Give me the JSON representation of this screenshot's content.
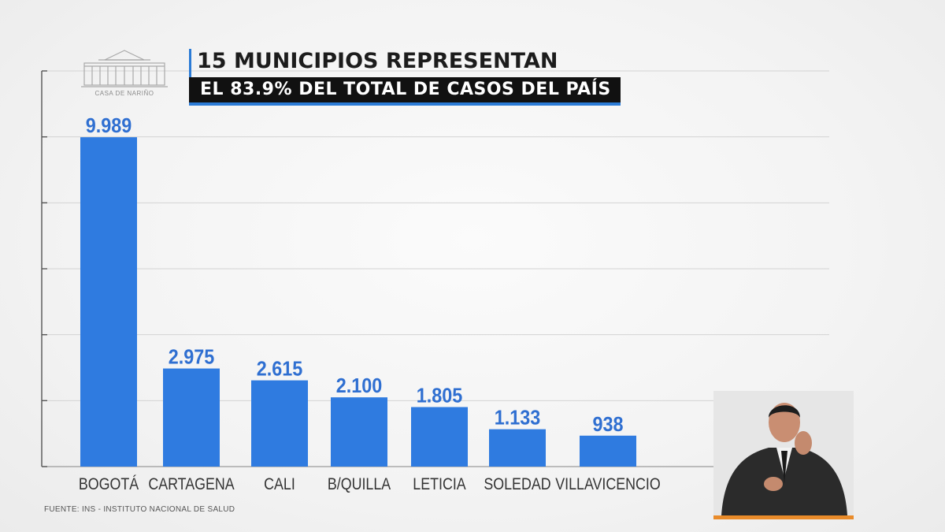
{
  "header": {
    "title_line1": "15 MUNICIPIOS REPRESENTAN",
    "title_line2": "EL 83.9% DEL TOTAL DE CASOS DEL PAÍS",
    "logo_caption": "CASA DE NARIÑO"
  },
  "footer": {
    "source": "FUENTE: INS - INSTITUTO NACIONAL DE SALUD"
  },
  "colors": {
    "bar": "#2f7be0",
    "accent": "#2b7bd6",
    "value_label": "#2f6fd1",
    "interpreter_border": "#e98b2a"
  },
  "chart_data": {
    "type": "bar",
    "categories": [
      "BOGOTÁ",
      "CARTAGENA",
      "CALI",
      "B/QUILLA",
      "LETICIA",
      "SOLEDAD",
      "VILLAVICENCIO"
    ],
    "values": [
      9989,
      2975,
      2615,
      2100,
      1805,
      1133,
      938
    ],
    "value_labels": [
      "9.989",
      "2.975",
      "2.615",
      "2.100",
      "1.805",
      "1.133",
      "938"
    ],
    "title": "15 MUNICIPIOS REPRESENTAN EL 83.9% DEL TOTAL DE CASOS DEL PAÍS",
    "xlabel": "",
    "ylabel": "",
    "ylim": [
      0,
      12000
    ],
    "grid": true,
    "legend": "none"
  }
}
